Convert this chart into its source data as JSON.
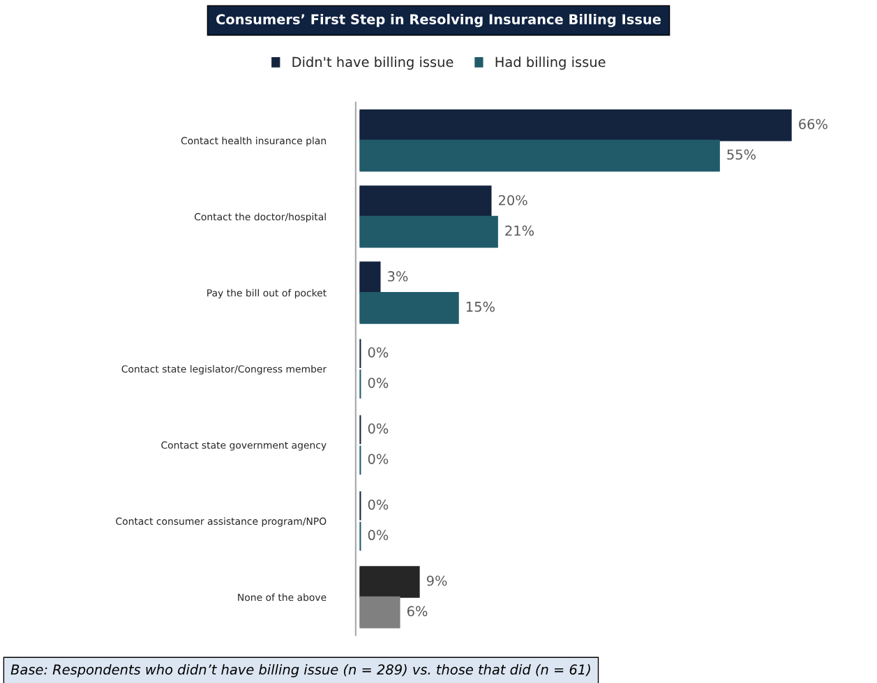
{
  "chart_data": {
    "type": "bar",
    "orientation": "horizontal",
    "title": "Consumers’ First Step in Resolving Insurance Billing Issue",
    "categories": [
      "Contact health insurance plan",
      "Contact the doctor/hospital",
      "Pay the bill out of pocket",
      "Contact state legislator/Congress member",
      "Contact state government agency",
      "Contact consumer assistance program/NPO",
      "None of the above"
    ],
    "series": [
      {
        "name": "Didn't have billing issue",
        "color": "#14243f",
        "colors": [
          "#14243f",
          "#14243f",
          "#14243f",
          "#14243f",
          "#14243f",
          "#14243f",
          "#262626"
        ],
        "values": [
          66,
          20,
          3,
          0,
          0,
          0,
          9
        ],
        "value_labels": [
          "66%",
          "20%",
          "3%",
          "0%",
          "0%",
          "0%",
          "9%"
        ]
      },
      {
        "name": "Had billing issue",
        "color": "#215b6a",
        "colors": [
          "#215b6a",
          "#215b6a",
          "#215b6a",
          "#215b6a",
          "#215b6a",
          "#215b6a",
          "#808080"
        ],
        "values": [
          55,
          21,
          15,
          0,
          0,
          0,
          6
        ],
        "value_labels": [
          "55%",
          "21%",
          "15%",
          "0%",
          "0%",
          "0%",
          "6%"
        ]
      }
    ],
    "legend": "top",
    "grid": false,
    "annotations": [
      "Base: Respondents who didn’t have billing issue (n = 289) vs. those that did (n = 61)"
    ]
  }
}
